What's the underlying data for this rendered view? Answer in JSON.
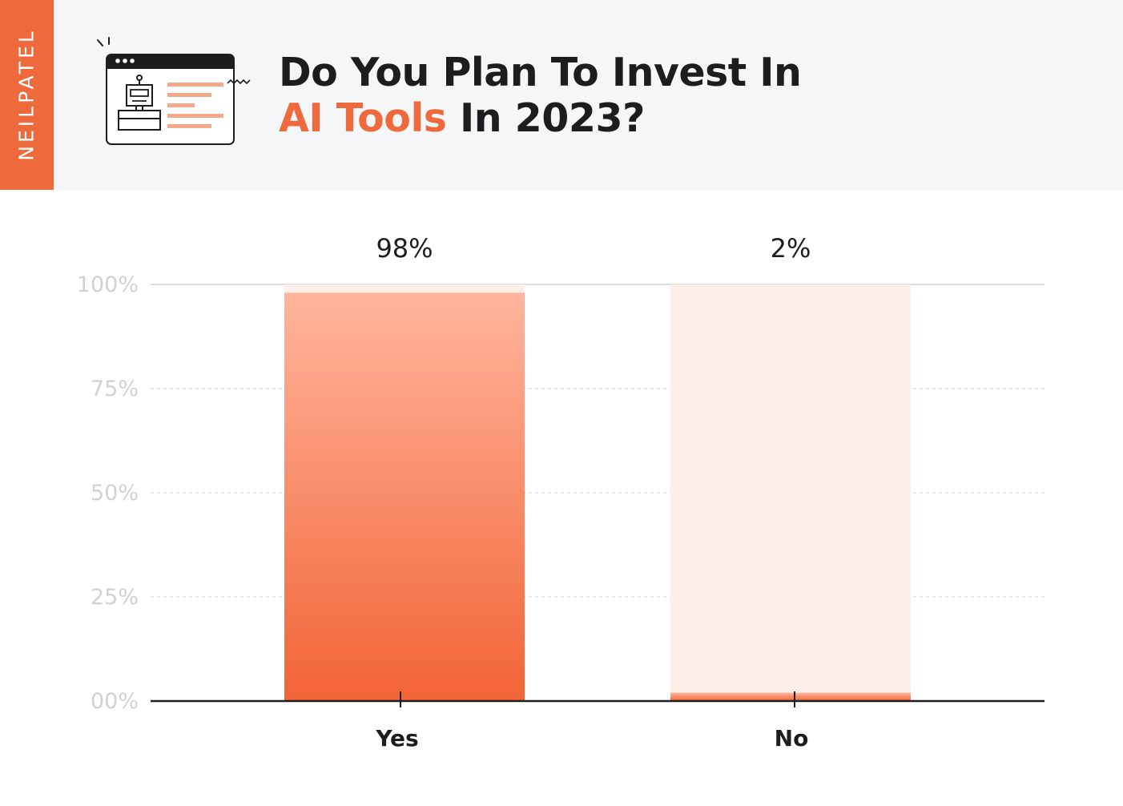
{
  "brand": {
    "name": "NEILPATEL"
  },
  "title": {
    "line1": "Do You Plan To Invest In",
    "accent": "AI Tools",
    "rest": " In 2023?"
  },
  "colors": {
    "accent": "#ee6a3d",
    "bar_top": "#ffb59c",
    "bar_bottom": "#f26436",
    "bar_track": "#fdeeea",
    "text": "#1d1d1f",
    "grid": "#dcdde0"
  },
  "icon": "browser-robot-icon",
  "chart_data": {
    "type": "bar",
    "categories": [
      "Yes",
      "No"
    ],
    "values": [
      98,
      2
    ],
    "data_labels": [
      "98%",
      "2%"
    ],
    "title": "",
    "xlabel": "",
    "ylabel": "",
    "ylim": [
      0,
      100
    ],
    "y_ticks": [
      0,
      25,
      50,
      75,
      100
    ],
    "y_tick_labels": [
      "00%",
      "25%",
      "50%",
      "75%",
      "100%"
    ],
    "grid": true
  }
}
